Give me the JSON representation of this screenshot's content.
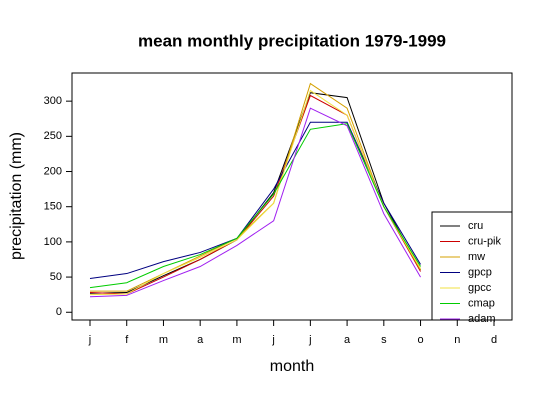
{
  "chart_data": {
    "type": "line",
    "title": "mean monthly precipitation 1979-1999",
    "xlabel": "month",
    "ylabel": "precipitation (mm)",
    "categories": [
      "j",
      "f",
      "m",
      "a",
      "m",
      "j",
      "j",
      "a",
      "s",
      "o",
      "n",
      "d"
    ],
    "ylim": [
      -11,
      340
    ],
    "yticks": [
      0,
      50,
      100,
      150,
      200,
      250,
      300
    ],
    "legend": "lower right",
    "series": [
      {
        "name": "cru",
        "color": "#000000",
        "values": [
          27,
          28,
          52,
          75,
          103,
          170,
          312,
          305,
          155,
          60,
          null,
          null
        ]
      },
      {
        "name": "cru-pik",
        "color": "#cc0000",
        "values": [
          28,
          26,
          50,
          75,
          103,
          165,
          308,
          280,
          150,
          58,
          null,
          null
        ]
      },
      {
        "name": "mw",
        "color": "#d4a000",
        "values": [
          30,
          30,
          55,
          80,
          105,
          155,
          325,
          290,
          150,
          60,
          null,
          null
        ]
      },
      {
        "name": "gpcp",
        "color": "#000080",
        "values": [
          48,
          55,
          72,
          85,
          105,
          175,
          270,
          270,
          155,
          68,
          null,
          null
        ]
      },
      {
        "name": "gpcc",
        "color": "#f0e040",
        "values": [
          25,
          26,
          55,
          78,
          103,
          155,
          315,
          280,
          150,
          62,
          null,
          null
        ]
      },
      {
        "name": "cmap",
        "color": "#00cc00",
        "values": [
          35,
          42,
          65,
          82,
          105,
          168,
          260,
          268,
          150,
          65,
          null,
          null
        ]
      },
      {
        "name": "adam",
        "color": "#a020f0",
        "values": [
          22,
          24,
          45,
          65,
          95,
          130,
          290,
          265,
          140,
          50,
          null,
          null
        ]
      }
    ]
  }
}
